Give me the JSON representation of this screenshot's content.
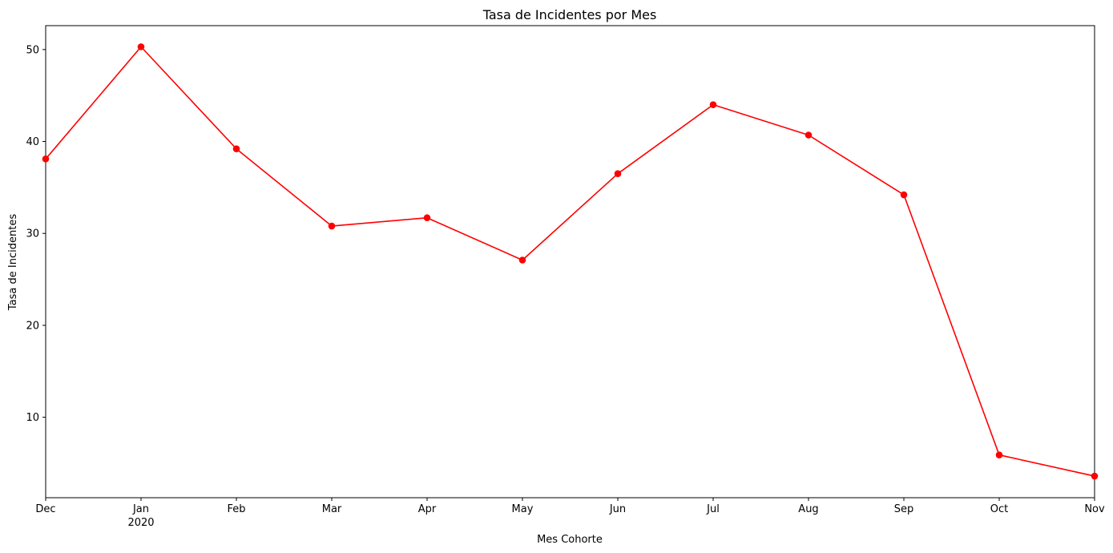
{
  "chart_data": {
    "type": "line",
    "title": "Tasa de Incidentes por Mes",
    "xlabel": "Mes Cohorte",
    "ylabel": "Tasa de Incidentes",
    "x": [
      "2019-12",
      "2020-01",
      "2020-02",
      "2020-03",
      "2020-04",
      "2020-05",
      "2020-06",
      "2020-07",
      "2020-08",
      "2020-09",
      "2020-10",
      "2020-11"
    ],
    "x_tick_labels": [
      "Dec",
      "Jan",
      "Feb",
      "Mar",
      "Apr",
      "May",
      "Jun",
      "Jul",
      "Aug",
      "Sep",
      "Oct",
      "Nov"
    ],
    "x_year_label": "2020",
    "series": [
      {
        "values": [
          38.1,
          50.3,
          39.2,
          30.8,
          31.7,
          27.1,
          36.5,
          44.0,
          40.7,
          34.2,
          5.9,
          3.6
        ],
        "color": "#ff0000",
        "marker": "circle"
      }
    ],
    "ylim": [
      1.25,
      52.6
    ],
    "y_ticks": [
      10,
      20,
      30,
      40,
      50
    ],
    "grid": false,
    "legend": "none"
  }
}
